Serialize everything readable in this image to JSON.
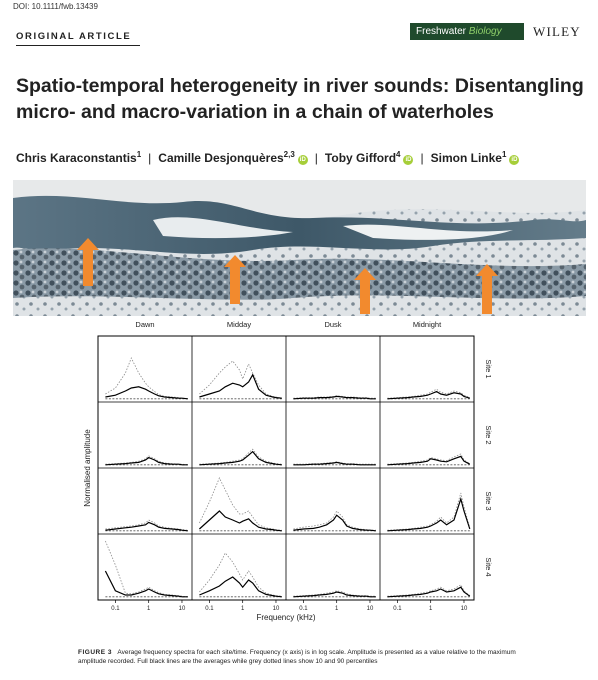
{
  "header": {
    "doi": "DOI: 10.1111/fwb.13439",
    "section": "ORIGINAL ARTICLE",
    "journal": {
      "prefix": "Freshwater",
      "name": "Biology"
    },
    "publisher": "WILEY"
  },
  "article": {
    "title": "Spatio-temporal heterogeneity in river sounds: Disentangling micro- and macro-variation in a chain of waterholes",
    "authors": [
      {
        "name": "Chris Karaconstantis",
        "aff": "1",
        "orcid": false
      },
      {
        "name": "Camille Desjonquères",
        "aff": "2,3",
        "orcid": true
      },
      {
        "name": "Toby Gifford",
        "aff": "4",
        "orcid": true
      },
      {
        "name": "Simon Linke",
        "aff": "1",
        "orcid": true
      }
    ]
  },
  "figure": {
    "label": "FIGURE 3",
    "caption": "Average frequency spectra for each site/time. Frequency (x axis) is in log scale. Amplitude is presented as a value relative to the maximum amplitude recorded. Full black lines are the averages while grey dotted lines show 10 and 90 percentiles"
  },
  "colors": {
    "journal_bg": "#1f4a2c",
    "journal_accent": "#8fd06a",
    "orcid": "#a6ce39",
    "arrow": "#f28a2e"
  },
  "chart_data": {
    "type": "line",
    "xlabel": "Frequency (kHz)",
    "ylabel": "Normalised amplitude",
    "x_scale": "log",
    "xlim": [
      0.03,
      20
    ],
    "x_ticks": [
      0.1,
      1,
      10
    ],
    "x_tick_labels": [
      "0.1",
      "1",
      "10"
    ],
    "ylim": [
      0,
      1
    ],
    "columns": [
      "Dawn",
      "Midday",
      "Dusk",
      "Midnight"
    ],
    "rows": [
      "Site 1",
      "Site 2",
      "Site 3",
      "Site 4"
    ],
    "freqs": [
      0.05,
      0.1,
      0.2,
      0.3,
      0.5,
      0.8,
      1,
      1.5,
      2,
      3,
      5,
      8,
      10,
      15
    ],
    "panels": [
      [
        {
          "mean": [
            0.05,
            0.08,
            0.15,
            0.2,
            0.22,
            0.18,
            0.15,
            0.1,
            0.07,
            0.05,
            0.04,
            0.03,
            0.03,
            0.02
          ],
          "p90": [
            0.1,
            0.2,
            0.45,
            0.7,
            0.45,
            0.28,
            0.22,
            0.14,
            0.09,
            0.06,
            0.05,
            0.04,
            0.03,
            0.02
          ]
        },
        {
          "mean": [
            0.05,
            0.1,
            0.15,
            0.22,
            0.28,
            0.25,
            0.22,
            0.3,
            0.42,
            0.18,
            0.08,
            0.05,
            0.04,
            0.03
          ],
          "p90": [
            0.1,
            0.25,
            0.45,
            0.55,
            0.65,
            0.5,
            0.35,
            0.6,
            0.45,
            0.25,
            0.1,
            0.06,
            0.05,
            0.03
          ]
        },
        {
          "mean": [
            0.02,
            0.03,
            0.03,
            0.04,
            0.04,
            0.05,
            0.06,
            0.05,
            0.04,
            0.04,
            0.03,
            0.03,
            0.02,
            0.02
          ],
          "p90": [
            0.03,
            0.04,
            0.04,
            0.05,
            0.05,
            0.06,
            0.07,
            0.06,
            0.05,
            0.05,
            0.04,
            0.04,
            0.03,
            0.03
          ]
        },
        {
          "mean": [
            0.02,
            0.03,
            0.04,
            0.05,
            0.06,
            0.08,
            0.1,
            0.14,
            0.1,
            0.08,
            0.12,
            0.1,
            0.06,
            0.03
          ],
          "p90": [
            0.03,
            0.04,
            0.05,
            0.06,
            0.08,
            0.1,
            0.13,
            0.18,
            0.13,
            0.1,
            0.15,
            0.12,
            0.08,
            0.04
          ]
        }
      ],
      [
        {
          "mean": [
            0.02,
            0.03,
            0.04,
            0.05,
            0.06,
            0.1,
            0.14,
            0.1,
            0.06,
            0.04,
            0.03,
            0.03,
            0.02,
            0.02
          ],
          "p90": [
            0.03,
            0.04,
            0.05,
            0.06,
            0.08,
            0.12,
            0.17,
            0.12,
            0.08,
            0.05,
            0.04,
            0.03,
            0.03,
            0.02
          ]
        },
        {
          "mean": [
            0.02,
            0.03,
            0.04,
            0.05,
            0.06,
            0.08,
            0.1,
            0.18,
            0.24,
            0.12,
            0.06,
            0.04,
            0.03,
            0.02
          ],
          "p90": [
            0.03,
            0.04,
            0.05,
            0.06,
            0.08,
            0.1,
            0.12,
            0.22,
            0.28,
            0.15,
            0.08,
            0.05,
            0.04,
            0.03
          ]
        },
        {
          "mean": [
            0.02,
            0.02,
            0.03,
            0.03,
            0.04,
            0.05,
            0.06,
            0.04,
            0.03,
            0.03,
            0.02,
            0.02,
            0.02,
            0.02
          ],
          "p90": [
            0.03,
            0.03,
            0.04,
            0.04,
            0.05,
            0.06,
            0.07,
            0.05,
            0.04,
            0.04,
            0.03,
            0.03,
            0.03,
            0.03
          ]
        },
        {
          "mean": [
            0.02,
            0.03,
            0.04,
            0.05,
            0.06,
            0.08,
            0.12,
            0.1,
            0.08,
            0.07,
            0.12,
            0.16,
            0.08,
            0.03
          ],
          "p90": [
            0.03,
            0.04,
            0.05,
            0.06,
            0.08,
            0.1,
            0.14,
            0.12,
            0.1,
            0.09,
            0.15,
            0.2,
            0.1,
            0.04
          ]
        }
      ],
      [
        {
          "mean": [
            0.03,
            0.05,
            0.07,
            0.08,
            0.1,
            0.12,
            0.16,
            0.12,
            0.08,
            0.06,
            0.05,
            0.04,
            0.03,
            0.02
          ],
          "p90": [
            0.05,
            0.07,
            0.09,
            0.1,
            0.12,
            0.15,
            0.2,
            0.15,
            0.1,
            0.08,
            0.06,
            0.05,
            0.04,
            0.03
          ]
        },
        {
          "mean": [
            0.05,
            0.2,
            0.35,
            0.25,
            0.2,
            0.15,
            0.18,
            0.22,
            0.15,
            0.08,
            0.05,
            0.04,
            0.03,
            0.02
          ],
          "p90": [
            0.15,
            0.5,
            0.9,
            0.7,
            0.45,
            0.3,
            0.3,
            0.35,
            0.25,
            0.12,
            0.07,
            0.05,
            0.04,
            0.03
          ]
        },
        {
          "mean": [
            0.03,
            0.05,
            0.06,
            0.08,
            0.12,
            0.2,
            0.28,
            0.2,
            0.1,
            0.06,
            0.04,
            0.03,
            0.03,
            0.02
          ],
          "p90": [
            0.05,
            0.08,
            0.1,
            0.12,
            0.15,
            0.25,
            0.35,
            0.25,
            0.12,
            0.08,
            0.05,
            0.04,
            0.03,
            0.03
          ]
        },
        {
          "mean": [
            0.02,
            0.03,
            0.04,
            0.05,
            0.06,
            0.08,
            0.1,
            0.15,
            0.2,
            0.12,
            0.2,
            0.55,
            0.35,
            0.05
          ],
          "p90": [
            0.03,
            0.04,
            0.05,
            0.06,
            0.08,
            0.1,
            0.12,
            0.18,
            0.25,
            0.15,
            0.25,
            0.65,
            0.42,
            0.07
          ]
        }
      ],
      [
        {
          "mean": [
            0.45,
            0.12,
            0.05,
            0.05,
            0.08,
            0.12,
            0.15,
            0.1,
            0.07,
            0.05,
            0.04,
            0.03,
            0.02,
            0.02
          ],
          "p90": [
            0.95,
            0.55,
            0.08,
            0.07,
            0.1,
            0.15,
            0.18,
            0.12,
            0.09,
            0.06,
            0.05,
            0.04,
            0.03,
            0.02
          ]
        },
        {
          "mean": [
            0.05,
            0.12,
            0.2,
            0.28,
            0.35,
            0.25,
            0.18,
            0.3,
            0.25,
            0.12,
            0.06,
            0.04,
            0.03,
            0.02
          ],
          "p90": [
            0.1,
            0.3,
            0.55,
            0.75,
            0.6,
            0.4,
            0.3,
            0.45,
            0.35,
            0.18,
            0.08,
            0.05,
            0.04,
            0.03
          ]
        },
        {
          "mean": [
            0.02,
            0.03,
            0.04,
            0.05,
            0.06,
            0.08,
            0.1,
            0.08,
            0.05,
            0.04,
            0.03,
            0.03,
            0.02,
            0.02
          ],
          "p90": [
            0.03,
            0.04,
            0.05,
            0.06,
            0.08,
            0.1,
            0.12,
            0.1,
            0.07,
            0.05,
            0.04,
            0.04,
            0.03,
            0.03
          ]
        },
        {
          "mean": [
            0.02,
            0.03,
            0.04,
            0.05,
            0.06,
            0.08,
            0.1,
            0.12,
            0.15,
            0.1,
            0.12,
            0.18,
            0.1,
            0.03
          ],
          "p90": [
            0.03,
            0.04,
            0.05,
            0.06,
            0.08,
            0.1,
            0.12,
            0.15,
            0.18,
            0.12,
            0.15,
            0.22,
            0.12,
            0.04
          ]
        }
      ]
    ]
  }
}
